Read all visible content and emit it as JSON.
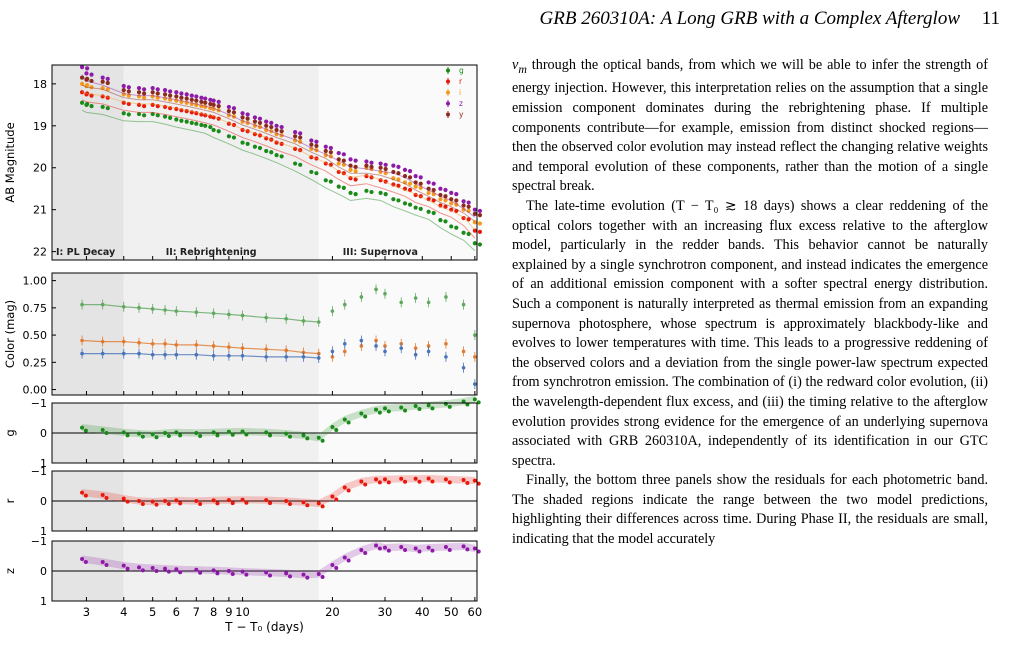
{
  "header": {
    "title": "GRB 260310A: A Long GRB with a Complex Afterglow",
    "page_number": "11"
  },
  "colors": {
    "g": "#1a8a1a",
    "r": "#e8180c",
    "i": "#f59a1c",
    "z": "#8e1aa8",
    "y": "#8b2a20",
    "color_g_r": "#5fa85f",
    "color_r_i": "#e07a30",
    "color_i_z": "#4a74b8"
  },
  "figure": {
    "xlabel": "T − T₀ (days)",
    "xticks": [
      "3",
      "4",
      "5",
      "6",
      "7",
      "8",
      "9",
      "10",
      "20",
      "30",
      "40",
      "50",
      "60"
    ],
    "xtick_values": [
      3,
      4,
      5,
      6,
      7,
      8,
      9,
      10,
      20,
      30,
      40,
      50,
      60
    ],
    "xlim": [
      2.3,
      61
    ],
    "phase_bounds": [
      4,
      18
    ],
    "phases": [
      "I: PL Decay",
      "II: Rebrightening",
      "III: Supernova"
    ],
    "legend": [
      "g",
      "r",
      "i",
      "z",
      "y"
    ],
    "panels": [
      {
        "id": "mag",
        "ylabel": "AB Magnitude",
        "yticks": [
          "18",
          "19",
          "20",
          "21",
          "22"
        ],
        "ylim": [
          17.55,
          22.2
        ],
        "inverted": true
      },
      {
        "id": "color",
        "ylabel": "Color (mag)",
        "yticks": [
          "1.00",
          "0.75",
          "0.50",
          "0.25",
          "0.00"
        ],
        "ylim": [
          -0.05,
          1.07
        ]
      },
      {
        "id": "res_g",
        "ylabel": "g",
        "yticks": [
          "−1",
          "0",
          "1"
        ],
        "ylim": [
          -1,
          1
        ]
      },
      {
        "id": "res_r",
        "ylabel": "r",
        "yticks": [
          "−1",
          "0",
          "1"
        ],
        "ylim": [
          -1,
          1
        ]
      },
      {
        "id": "res_z",
        "ylabel": "z",
        "yticks": [
          "−1",
          "0",
          "1"
        ],
        "ylim": [
          -1,
          1
        ]
      }
    ]
  },
  "chart_data": {
    "type": "scatter",
    "xlabel": "T − T₀ (days)",
    "xscale": "log",
    "xlim": [
      2.3,
      61
    ],
    "magnitude_series": [
      {
        "name": "g",
        "x": [
          2.9,
          3.0,
          3.4,
          4.0,
          4.5,
          5.0,
          5.5,
          6.0,
          6.5,
          7.0,
          7.5,
          8.0,
          9.0,
          10.0,
          11.0,
          12.0,
          13.0,
          15.0,
          17.0,
          19.0,
          21.0,
          23.0,
          26.0,
          29.0,
          32.0,
          35.0,
          38.0,
          42.0,
          46.0,
          50.0,
          55.0,
          60.0
        ],
        "y": [
          18.45,
          18.5,
          18.55,
          18.7,
          18.72,
          18.72,
          18.78,
          18.85,
          18.9,
          18.95,
          19.0,
          19.1,
          19.25,
          19.4,
          19.5,
          19.6,
          19.7,
          19.9,
          20.1,
          20.3,
          20.45,
          20.6,
          20.55,
          20.6,
          20.75,
          20.85,
          20.95,
          21.05,
          21.25,
          21.4,
          21.55,
          21.8
        ]
      },
      {
        "name": "r",
        "x": [
          2.9,
          3.0,
          3.4,
          4.0,
          4.5,
          5.0,
          5.5,
          6.0,
          6.5,
          7.0,
          7.5,
          8.0,
          9.0,
          10.0,
          11.0,
          12.0,
          13.0,
          15.0,
          17.0,
          19.0,
          21.0,
          23.0,
          26.0,
          29.0,
          32.0,
          35.0,
          38.0,
          42.0,
          46.0,
          50.0,
          55.0,
          60.0
        ],
        "y": [
          18.2,
          18.25,
          18.3,
          18.45,
          18.5,
          18.5,
          18.55,
          18.6,
          18.65,
          18.7,
          18.75,
          18.8,
          18.95,
          19.1,
          19.2,
          19.3,
          19.4,
          19.55,
          19.75,
          19.9,
          20.1,
          20.25,
          20.2,
          20.3,
          20.4,
          20.5,
          20.65,
          20.75,
          20.9,
          21.0,
          21.2,
          21.5
        ]
      },
      {
        "name": "i",
        "x": [
          2.9,
          3.0,
          3.4,
          4.0,
          4.5,
          5.0,
          5.5,
          6.0,
          6.5,
          7.0,
          7.5,
          8.0,
          9.0,
          10.0,
          11.0,
          12.0,
          13.0,
          15.0,
          17.0,
          19.0,
          21.0,
          23.0,
          26.0,
          29.0,
          32.0,
          35.0,
          38.0,
          42.0,
          46.0,
          50.0,
          55.0,
          60.0
        ],
        "y": [
          18.0,
          18.05,
          18.1,
          18.25,
          18.3,
          18.3,
          18.35,
          18.4,
          18.45,
          18.5,
          18.55,
          18.6,
          18.75,
          18.9,
          19.0,
          19.1,
          19.2,
          19.35,
          19.55,
          19.7,
          19.9,
          20.05,
          20.0,
          20.1,
          20.25,
          20.35,
          20.45,
          20.6,
          20.75,
          20.85,
          21.0,
          21.3
        ]
      },
      {
        "name": "z",
        "x": [
          2.9,
          3.0,
          3.4,
          4.0,
          4.5,
          5.0,
          5.5,
          6.0,
          6.5,
          7.0,
          7.5,
          8.0,
          9.0,
          10.0,
          11.0,
          12.0,
          13.0,
          15.0,
          17.0,
          19.0,
          21.0,
          23.0,
          26.0,
          29.0,
          32.0,
          35.0,
          38.0,
          42.0,
          46.0,
          50.0,
          55.0,
          60.0
        ],
        "y": [
          17.6,
          17.75,
          17.85,
          18.05,
          18.1,
          18.1,
          18.15,
          18.2,
          18.25,
          18.3,
          18.35,
          18.4,
          18.55,
          18.7,
          18.8,
          18.9,
          19.0,
          19.15,
          19.35,
          19.5,
          19.65,
          19.8,
          19.85,
          19.9,
          19.95,
          20.05,
          20.2,
          20.35,
          20.5,
          20.6,
          20.8,
          21.0
        ]
      },
      {
        "name": "y",
        "x": [
          2.9,
          3.0,
          3.4,
          4.0,
          4.5,
          5.0,
          5.5,
          6.0,
          6.5,
          7.0,
          7.5,
          8.0,
          9.0,
          10.0,
          11.0,
          12.0,
          13.0,
          15.0,
          17.0,
          19.0,
          21.0,
          23.0,
          26.0,
          29.0,
          32.0,
          35.0,
          38.0,
          42.0,
          46.0,
          50.0,
          55.0,
          60.0
        ],
        "y": [
          17.85,
          17.9,
          17.95,
          18.15,
          18.2,
          18.2,
          18.25,
          18.3,
          18.35,
          18.4,
          18.45,
          18.5,
          18.65,
          18.8,
          18.9,
          19.0,
          19.1,
          19.25,
          19.45,
          19.6,
          19.8,
          19.95,
          19.95,
          20.0,
          20.1,
          20.2,
          20.35,
          20.5,
          20.65,
          20.75,
          20.9,
          21.1
        ]
      }
    ],
    "color_series": [
      {
        "name": "g−r",
        "x": [
          2.9,
          3.4,
          4.0,
          4.5,
          5.0,
          5.5,
          6.0,
          7.0,
          8.0,
          9.0,
          10.0,
          12.0,
          14.0,
          16.0,
          18.0,
          20.0,
          22.0,
          25.0,
          28.0,
          30.0,
          34.0,
          38.0,
          42.0,
          48.0,
          55.0,
          60.0
        ],
        "y": [
          0.78,
          0.78,
          0.76,
          0.75,
          0.74,
          0.73,
          0.72,
          0.71,
          0.7,
          0.69,
          0.68,
          0.66,
          0.65,
          0.63,
          0.62,
          0.72,
          0.78,
          0.85,
          0.92,
          0.88,
          0.8,
          0.84,
          0.8,
          0.85,
          0.78,
          0.5
        ]
      },
      {
        "name": "r−i",
        "x": [
          2.9,
          3.4,
          4.0,
          4.5,
          5.0,
          5.5,
          6.0,
          7.0,
          8.0,
          9.0,
          10.0,
          12.0,
          14.0,
          16.0,
          18.0,
          20.0,
          22.0,
          25.0,
          28.0,
          30.0,
          34.0,
          38.0,
          42.0,
          48.0,
          55.0,
          60.0
        ],
        "y": [
          0.45,
          0.44,
          0.44,
          0.43,
          0.42,
          0.42,
          0.41,
          0.41,
          0.4,
          0.39,
          0.38,
          0.37,
          0.36,
          0.34,
          0.33,
          0.3,
          0.35,
          0.4,
          0.45,
          0.4,
          0.42,
          0.38,
          0.4,
          0.42,
          0.35,
          0.3
        ]
      },
      {
        "name": "i−z",
        "x": [
          2.9,
          3.4,
          4.0,
          4.5,
          5.0,
          5.5,
          6.0,
          7.0,
          8.0,
          9.0,
          10.0,
          12.0,
          14.0,
          16.0,
          18.0,
          20.0,
          22.0,
          25.0,
          28.0,
          30.0,
          34.0,
          38.0,
          42.0,
          48.0,
          55.0,
          60.0
        ],
        "y": [
          0.33,
          0.33,
          0.33,
          0.33,
          0.32,
          0.32,
          0.32,
          0.32,
          0.31,
          0.31,
          0.31,
          0.3,
          0.3,
          0.3,
          0.29,
          0.35,
          0.42,
          0.45,
          0.4,
          0.35,
          0.38,
          0.32,
          0.35,
          0.3,
          0.2,
          0.05
        ]
      }
    ],
    "residual_series": [
      {
        "name": "g",
        "x": [
          2.9,
          3.4,
          4.0,
          4.5,
          5.0,
          5.5,
          6.0,
          7.0,
          8.0,
          9.0,
          10.0,
          12.0,
          14.0,
          16.0,
          18.0,
          20.0,
          22.0,
          25.0,
          28.0,
          30.0,
          34.0,
          38.0,
          42.0,
          48.0,
          55.0,
          60.0
        ],
        "y": [
          -0.18,
          -0.1,
          -0.02,
          0.02,
          0.04,
          0.0,
          -0.02,
          0.0,
          -0.02,
          -0.04,
          -0.05,
          -0.02,
          0.02,
          0.08,
          0.16,
          -0.2,
          -0.45,
          -0.65,
          -0.78,
          -0.82,
          -0.85,
          -0.9,
          -0.92,
          -0.97,
          -1.05,
          -1.12
        ]
      },
      {
        "name": "r",
        "x": [
          2.9,
          3.4,
          4.0,
          4.5,
          5.0,
          5.5,
          6.0,
          7.0,
          8.0,
          9.0,
          10.0,
          12.0,
          14.0,
          16.0,
          18.0,
          20.0,
          22.0,
          25.0,
          28.0,
          30.0,
          34.0,
          38.0,
          42.0,
          48.0,
          55.0,
          60.0
        ],
        "y": [
          -0.28,
          -0.2,
          -0.08,
          0.0,
          0.02,
          0.0,
          -0.02,
          0.0,
          -0.02,
          -0.03,
          -0.04,
          -0.03,
          0.0,
          0.04,
          0.08,
          -0.15,
          -0.45,
          -0.65,
          -0.72,
          -0.72,
          -0.74,
          -0.74,
          -0.75,
          -0.72,
          -0.7,
          -0.68
        ]
      },
      {
        "name": "z",
        "x": [
          2.9,
          3.4,
          4.0,
          4.5,
          5.0,
          5.5,
          6.0,
          7.0,
          8.0,
          9.0,
          10.0,
          12.0,
          14.0,
          16.0,
          18.0,
          20.0,
          22.0,
          25.0,
          28.0,
          30.0,
          34.0,
          38.0,
          42.0,
          48.0,
          55.0,
          60.0
        ],
        "y": [
          -0.4,
          -0.3,
          -0.18,
          -0.12,
          -0.1,
          -0.08,
          -0.06,
          -0.04,
          -0.02,
          0.0,
          0.02,
          0.05,
          0.08,
          0.12,
          0.1,
          -0.2,
          -0.45,
          -0.7,
          -0.85,
          -0.78,
          -0.8,
          -0.75,
          -0.78,
          -0.8,
          -0.82,
          -0.75
        ]
      }
    ]
  },
  "body": {
    "p1": "ν",
    "p1_sub": "m",
    "p1_rest": " through the optical bands, from which we will be able to infer the strength of energy injection. However, this interpretation relies on the assumption that a single emission component dominates during the rebrightening phase. If multiple components contribute—for example, emission from distinct shocked regions—then the observed color evolution may instead reflect the changing relative weights and temporal evolution of these components, rather than the motion of a single spectral break.",
    "p2": "The late-time evolution (T − T₀ ≳ 18 days) shows a clear reddening of the optical colors together with an increasing flux excess relative to the afterglow model, particularly in the redder bands. This behavior cannot be naturally explained by a single synchrotron component, and instead indicates the emergence of an additional emission component with a softer spectral energy distribution. Such a component is naturally interpreted as thermal emission from an expanding supernova photosphere, whose spectrum is approximately blackbody-like and evolves to lower temperatures with time. This leads to a progressive reddening of the observed colors and a deviation from the single power-law spectrum expected from synchrotron emission. The combination of (i) the redward color evolution, (ii) the wavelength-dependent flux excess, and (iii) the timing relative to the afterglow evolution provides strong evidence for the emergence of an underlying supernova associated with GRB 260310A, independently of its identification in our GTC spectra.",
    "p3": "Finally, the bottom three panels show the residuals for each photometric band. The shaded regions indicate the range between the two model predictions, highlighting their differences across time. During Phase II, the residuals are small, indicating that the model accurately"
  }
}
